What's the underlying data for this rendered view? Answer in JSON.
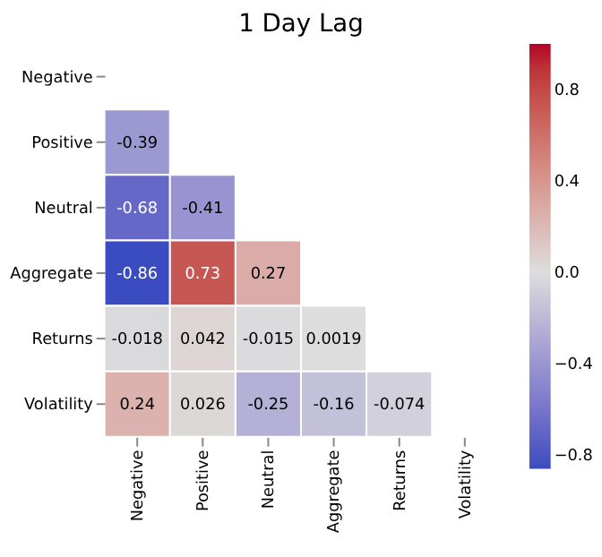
{
  "chart_data": {
    "type": "heatmap",
    "title": "1 Day Lag",
    "categories": [
      "Negative",
      "Positive",
      "Neutral",
      "Aggregate",
      "Returns",
      "Volatility"
    ],
    "y_categories": [
      "Negative",
      "Positive",
      "Neutral",
      "Aggregate",
      "Returns",
      "Volatility"
    ],
    "cells": [
      [
        null,
        null,
        null,
        null,
        null,
        null
      ],
      [
        -0.39,
        null,
        null,
        null,
        null,
        null
      ],
      [
        -0.68,
        -0.41,
        null,
        null,
        null,
        null
      ],
      [
        -0.86,
        0.73,
        0.27,
        null,
        null,
        null
      ],
      [
        -0.018,
        0.042,
        -0.015,
        0.0019,
        null,
        null
      ],
      [
        0.24,
        0.026,
        -0.25,
        -0.16,
        -0.074,
        null
      ]
    ],
    "data_labels": true,
    "clim": [
      -0.86,
      1
    ],
    "cticks": [
      -0.8,
      -0.4,
      {
        "value": 0,
        "label": "0.0"
      },
      0.4,
      0.8
    ]
  }
}
